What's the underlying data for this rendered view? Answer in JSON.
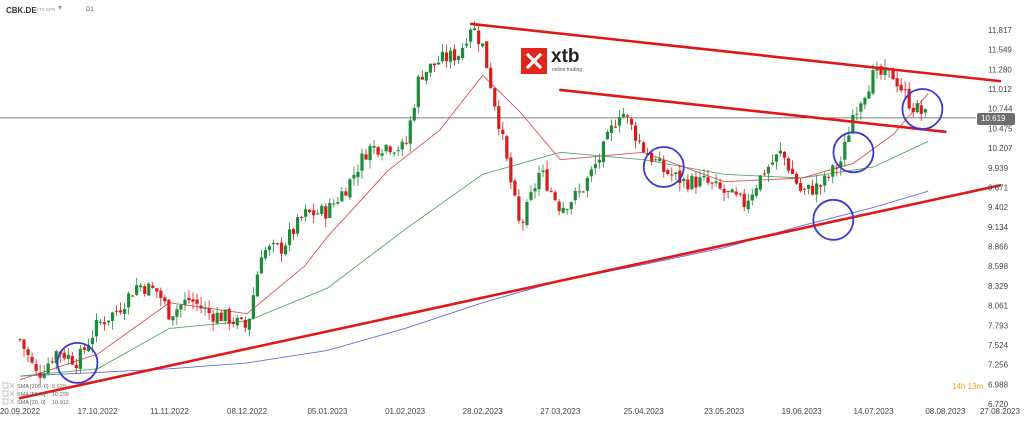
{
  "header": {
    "symbol": "CBK.DE",
    "exchange": "STC EFR",
    "interval": "D1"
  },
  "logo": {
    "brand": "xtb",
    "tagline": "online trading"
  },
  "countdown": "14h 13m",
  "price_tag": "10.619",
  "colors": {
    "up": "#1e8a3a",
    "down": "#d81b1b",
    "sma20": "#e05050",
    "sma50": "#52a86a",
    "sma200": "#6a6ad8",
    "trendline": "#e01818",
    "circle": "#3a3acc",
    "brand_red": "#e0251b"
  },
  "chart_data": {
    "type": "candlestick",
    "y_ticks": [
      "11.817",
      "11.549",
      "11.280",
      "11.012",
      "10.744",
      "10.475",
      "10.207",
      "9.939",
      "9.671",
      "9.402",
      "9.134",
      "8.866",
      "8.598",
      "8.329",
      "8.061",
      "7.793",
      "7.524",
      "7.256",
      "6.988",
      "6.720"
    ],
    "x_ticks": [
      "20.09.2022",
      "17.10.2022",
      "11.11.2022",
      "08.12.2022",
      "05.01.2023",
      "01.02.2023",
      "28.02.2023",
      "27.03.2023",
      "25.04.2023",
      "23.05.2023",
      "19.06.2023",
      "14.07.2023",
      "08.08.2023",
      "27.08.2023"
    ],
    "ylim": [
      6.72,
      11.817
    ],
    "last_price": 10.619,
    "legend": [
      {
        "label": "SMA [200, 0]",
        "value": "9.620",
        "color": "#6a6ad8"
      },
      {
        "label": "SMA [50, 0]",
        "value": "10.299",
        "color": "#52a86a"
      },
      {
        "label": "SMA [20, 0]",
        "value": "10.912",
        "color": "#e05050"
      }
    ],
    "close_path": [
      [
        "20.09.2022",
        7.6
      ],
      [
        "26.09.2022",
        7.1
      ],
      [
        "03.10.2022",
        7.45
      ],
      [
        "10.10.2022",
        7.3
      ],
      [
        "17.10.2022",
        7.8
      ],
      [
        "24.10.2022",
        8.0
      ],
      [
        "31.10.2022",
        8.35
      ],
      [
        "07.11.2022",
        8.25
      ],
      [
        "11.11.2022",
        7.95
      ],
      [
        "18.11.2022",
        8.15
      ],
      [
        "25.11.2022",
        7.95
      ],
      [
        "01.12.2022",
        7.9
      ],
      [
        "08.12.2022",
        7.75
      ],
      [
        "13.12.2022",
        8.8
      ],
      [
        "20.12.2022",
        8.85
      ],
      [
        "28.12.2022",
        9.3
      ],
      [
        "05.01.2023",
        9.35
      ],
      [
        "12.01.2023",
        9.7
      ],
      [
        "19.01.2023",
        10.2
      ],
      [
        "26.01.2023",
        10.25
      ],
      [
        "01.02.2023",
        10.2
      ],
      [
        "06.02.2023",
        11.2
      ],
      [
        "13.02.2023",
        11.4
      ],
      [
        "20.02.2023",
        11.5
      ],
      [
        "24.02.2023",
        11.9
      ],
      [
        "28.02.2023",
        11.6
      ],
      [
        "06.03.2023",
        10.5
      ],
      [
        "13.03.2023",
        9.1
      ],
      [
        "20.03.2023",
        9.9
      ],
      [
        "27.03.2023",
        9.4
      ],
      [
        "03.04.2023",
        9.6
      ],
      [
        "10.04.2023",
        10.1
      ],
      [
        "17.04.2023",
        10.75
      ],
      [
        "25.04.2023",
        10.2
      ],
      [
        "02.05.2023",
        9.9
      ],
      [
        "09.05.2023",
        9.75
      ],
      [
        "16.05.2023",
        9.75
      ],
      [
        "23.05.2023",
        9.6
      ],
      [
        "30.05.2023",
        9.45
      ],
      [
        "06.06.2023",
        9.9
      ],
      [
        "12.06.2023",
        10.15
      ],
      [
        "19.06.2023",
        9.6
      ],
      [
        "26.06.2023",
        9.7
      ],
      [
        "03.07.2023",
        10.05
      ],
      [
        "07.07.2023",
        10.7
      ],
      [
        "14.07.2023",
        11.2
      ],
      [
        "21.07.2023",
        11.2
      ],
      [
        "27.07.2023",
        10.8
      ],
      [
        "02.08.2023",
        10.62
      ]
    ],
    "sma20": [
      [
        "20.09.2022",
        7.05
      ],
      [
        "17.10.2022",
        7.4
      ],
      [
        "11.11.2022",
        8.1
      ],
      [
        "08.12.2022",
        7.95
      ],
      [
        "28.12.2022",
        8.6
      ],
      [
        "05.01.2023",
        9.0
      ],
      [
        "26.01.2023",
        9.9
      ],
      [
        "13.02.2023",
        10.45
      ],
      [
        "28.02.2023",
        11.2
      ],
      [
        "13.03.2023",
        10.7
      ],
      [
        "27.03.2023",
        10.05
      ],
      [
        "25.04.2023",
        10.15
      ],
      [
        "23.05.2023",
        9.75
      ],
      [
        "19.06.2023",
        9.8
      ],
      [
        "07.07.2023",
        10.0
      ],
      [
        "21.07.2023",
        10.4
      ],
      [
        "02.08.2023",
        10.95
      ]
    ],
    "sma50": [
      [
        "20.09.2022",
        7.1
      ],
      [
        "17.10.2022",
        7.2
      ],
      [
        "11.11.2022",
        7.75
      ],
      [
        "08.12.2022",
        7.85
      ],
      [
        "05.01.2023",
        8.3
      ],
      [
        "01.02.2023",
        9.1
      ],
      [
        "28.02.2023",
        9.85
      ],
      [
        "27.03.2023",
        10.15
      ],
      [
        "25.04.2023",
        10.05
      ],
      [
        "23.05.2023",
        9.85
      ],
      [
        "19.06.2023",
        9.8
      ],
      [
        "14.07.2023",
        9.95
      ],
      [
        "02.08.2023",
        10.3
      ]
    ],
    "sma200": [
      [
        "20.09.2022",
        7.1
      ],
      [
        "17.10.2022",
        7.15
      ],
      [
        "11.11.2022",
        7.2
      ],
      [
        "08.12.2022",
        7.28
      ],
      [
        "05.01.2023",
        7.45
      ],
      [
        "01.02.2023",
        7.75
      ],
      [
        "28.02.2023",
        8.1
      ],
      [
        "27.03.2023",
        8.4
      ],
      [
        "25.04.2023",
        8.62
      ],
      [
        "23.05.2023",
        8.85
      ],
      [
        "19.06.2023",
        9.15
      ],
      [
        "14.07.2023",
        9.4
      ],
      [
        "02.08.2023",
        9.62
      ]
    ],
    "trendlines": [
      {
        "name": "lower-support",
        "from": [
          "20.09.2022",
          6.8
        ],
        "to": [
          "27.08.2023",
          9.7
        ]
      },
      {
        "name": "upper-resistance",
        "from": [
          "24.02.2023",
          11.9
        ],
        "to": [
          "27.08.2023",
          11.12
        ]
      },
      {
        "name": "inner-resistance",
        "from": [
          "27.03.2023",
          11.0
        ],
        "to": [
          "08.08.2023",
          10.43
        ]
      }
    ],
    "circles": [
      [
        "10.10.2022",
        7.28
      ],
      [
        "02.05.2023",
        9.95
      ],
      [
        "30.06.2023",
        9.23
      ],
      [
        "07.07.2023",
        10.15
      ],
      [
        "31.07.2023",
        10.74
      ]
    ]
  }
}
